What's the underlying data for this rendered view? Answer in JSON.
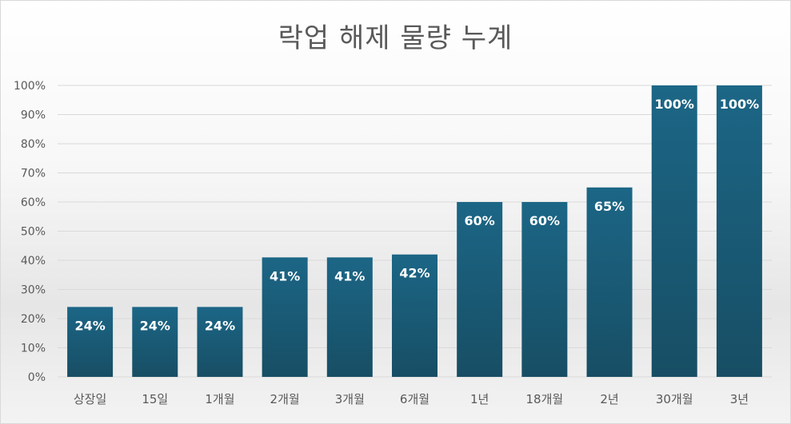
{
  "chart_data": {
    "type": "bar",
    "title": "락업 해제 물량 누계",
    "xlabel": "",
    "ylabel": "",
    "ylim": [
      0,
      100
    ],
    "yticks": [
      "0%",
      "10%",
      "20%",
      "30%",
      "40%",
      "50%",
      "60%",
      "70%",
      "80%",
      "90%",
      "100%"
    ],
    "categories": [
      "상장일",
      "15일",
      "1개월",
      "2개월",
      "3개월",
      "6개월",
      "1년",
      "18개월",
      "2년",
      "30개월",
      "3년"
    ],
    "values": [
      24,
      24,
      24,
      41,
      41,
      42,
      60,
      60,
      65,
      100,
      100
    ],
    "data_labels": [
      "24%",
      "24%",
      "24%",
      "41%",
      "41%",
      "42%",
      "60%",
      "60%",
      "65%",
      "100%",
      "100%"
    ],
    "grid": true,
    "legend": "none",
    "colors": {
      "bar_top": "#1c6686",
      "bar_bottom": "#174e64",
      "gridline": "#d9d9d9",
      "text": "#595959"
    }
  }
}
